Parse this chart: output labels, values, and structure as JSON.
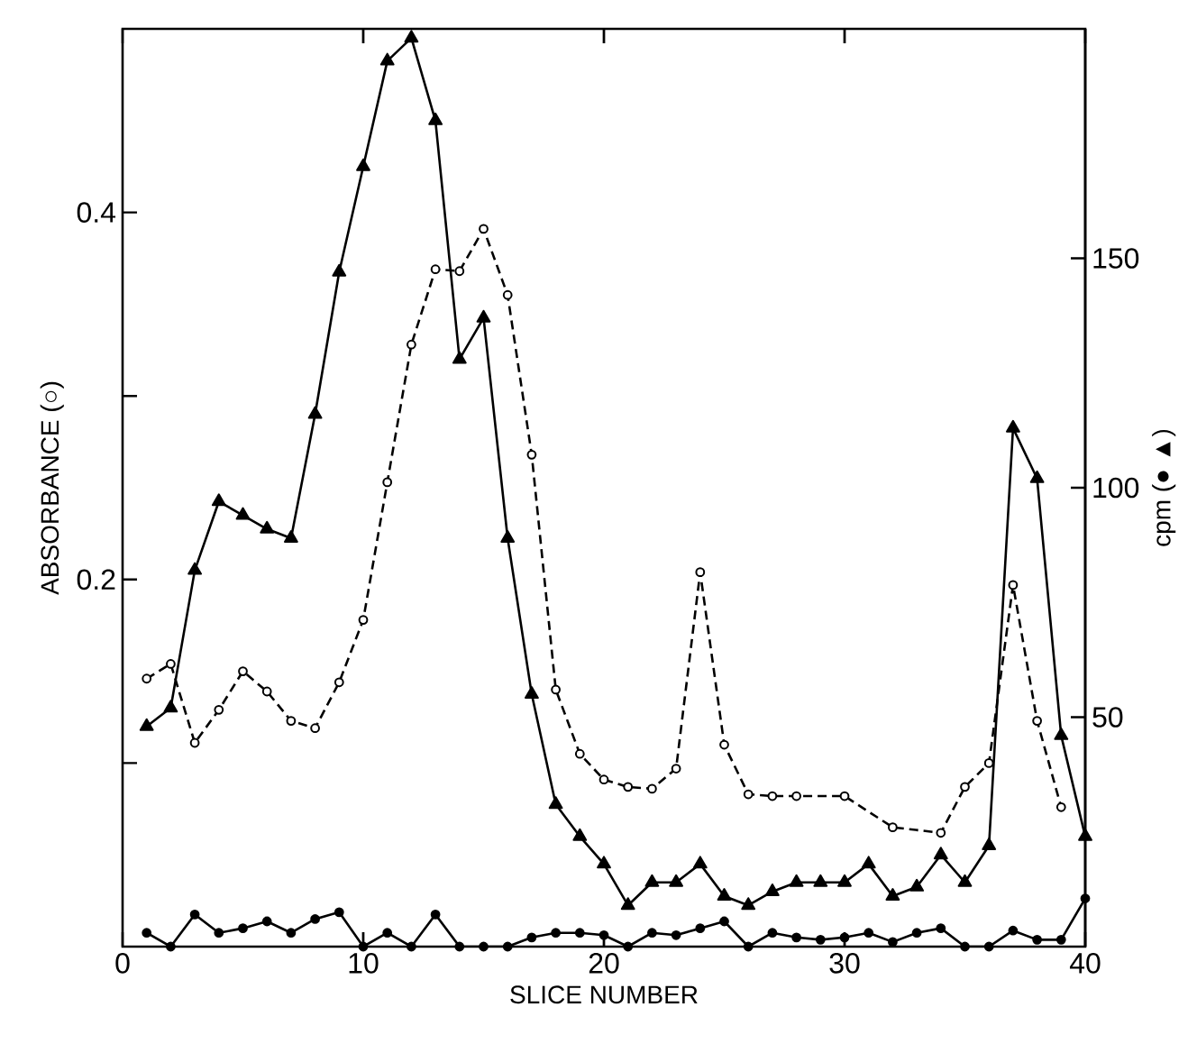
{
  "chart_data": {
    "type": "line",
    "xlabel": "SLICE NUMBER",
    "ylabel": "ABSORBANCE (○)",
    "y2label": "cpm (● ▲)",
    "x": [
      1,
      2,
      3,
      4,
      5,
      6,
      7,
      8,
      9,
      10,
      11,
      12,
      13,
      14,
      15,
      16,
      17,
      18,
      19,
      20,
      21,
      22,
      23,
      24,
      25,
      26,
      27,
      28,
      29,
      30,
      31,
      32,
      33,
      34,
      35,
      36,
      37,
      38,
      39,
      40
    ],
    "xlim": [
      0,
      40
    ],
    "xticks": [
      0,
      10,
      20,
      30,
      40
    ],
    "ylim": [
      0,
      0.5
    ],
    "yticks": [
      {
        "value": 0.1,
        "label": null
      },
      0.2,
      {
        "value": 0.3,
        "label": null
      },
      0.4
    ],
    "y2lim": [
      0,
      200
    ],
    "y2ticks": [
      50,
      100,
      150
    ],
    "series": [
      {
        "color": "#000000",
        "marker": "circle",
        "line_style": "dashed",
        "values": [
          0.146,
          0.154,
          0.111,
          0.129,
          0.15,
          0.139,
          0.123,
          0.119,
          0.144,
          0.178,
          0.253,
          0.328,
          0.369,
          0.368,
          0.391,
          0.355,
          0.268,
          0.14,
          0.105,
          0.091,
          0.087,
          0.086,
          0.097,
          0.204,
          0.11,
          0.083,
          0.082,
          0.082,
          null,
          0.082,
          null,
          0.065,
          null,
          0.062,
          0.087,
          0.1,
          0.197,
          0.123,
          0.076,
          null
        ]
      },
      {
        "color": "#000000",
        "marker": "triangle",
        "line_style": "solid",
        "axis": "y2",
        "values": [
          48,
          52,
          82,
          97,
          94,
          91,
          89,
          116,
          147,
          170,
          193,
          198,
          180,
          128,
          137,
          89,
          55,
          31,
          24,
          18,
          9,
          14,
          14,
          18,
          11,
          9,
          12,
          14,
          14,
          14,
          18,
          11,
          13,
          20,
          14,
          22,
          113,
          102,
          46,
          24
        ]
      },
      {
        "color": "#000000",
        "marker": "circle",
        "line_style": "solid",
        "axis": "y2",
        "values": [
          3,
          0,
          7,
          3,
          4,
          5.5,
          3,
          6,
          7.5,
          0,
          3,
          0,
          7,
          0,
          0,
          0,
          2,
          3,
          3,
          2.5,
          0,
          3,
          2.5,
          4,
          5.5,
          0,
          3,
          2,
          1.5,
          2,
          3,
          1,
          3,
          4,
          0,
          0,
          3.5,
          1.5,
          1.5,
          10.5
        ]
      }
    ]
  }
}
